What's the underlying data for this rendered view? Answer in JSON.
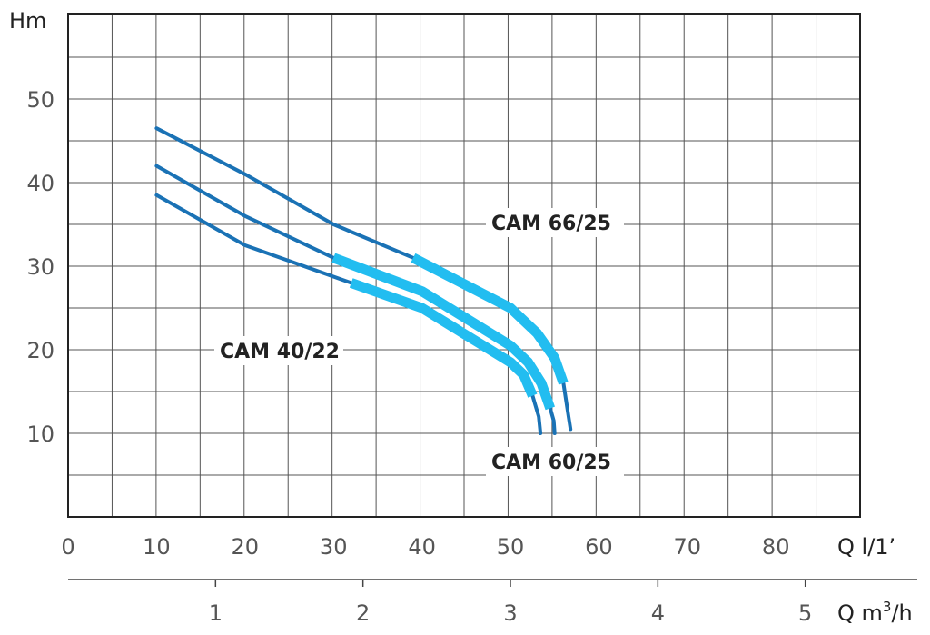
{
  "chart_data": {
    "type": "line",
    "ylabel": "Hm",
    "xlabel": "Q l/1’",
    "x2label_prefix": "Q m",
    "x2label_sup": "3",
    "x2label_suffix": "/h",
    "xlim": [
      0,
      90
    ],
    "ylim": [
      0,
      60
    ],
    "grid": true,
    "x_ticks": [
      "0",
      "10",
      "20",
      "30",
      "40",
      "50",
      "60",
      "70",
      "80"
    ],
    "y_ticks": [
      "10",
      "20",
      "30",
      "40",
      "50"
    ],
    "x2_ticks": [
      "1",
      "2",
      "3",
      "4",
      "5"
    ],
    "colors": {
      "curve": "#1a72b5",
      "highlight": "#22bdf0",
      "grid": "#555555",
      "frame": "#222222"
    },
    "series": [
      {
        "name": "CAM 66/25",
        "x": [
          10,
          20,
          30,
          39,
          50,
          53,
          55,
          56,
          56.5,
          56.8
        ],
        "y": [
          46.5,
          41,
          35,
          31,
          25,
          22,
          19,
          16,
          12.5,
          10.5
        ],
        "highlight_range": [
          39,
          56
        ]
      },
      {
        "name": "CAM 60/25",
        "x": [
          10,
          20,
          30,
          40,
          50,
          52,
          53.5,
          54.5,
          54.9,
          55
        ],
        "y": [
          42,
          36,
          31,
          27,
          20.5,
          18.5,
          16,
          13,
          11.5,
          10
        ],
        "highlight_range": [
          30,
          54.5
        ]
      },
      {
        "name": "CAM 40/22",
        "x": [
          10,
          20,
          32,
          40,
          50,
          51.5,
          52.5,
          53.2,
          53.4
        ],
        "y": [
          38.5,
          32.5,
          28,
          25,
          18.5,
          17,
          14.5,
          12,
          10
        ],
        "highlight_range": [
          32,
          52.5
        ]
      }
    ],
    "labels": [
      {
        "text": "CAM 66/25",
        "series": "CAM 66/25"
      },
      {
        "text": "CAM 60/25",
        "series": "CAM 60/25"
      },
      {
        "text": "CAM 40/22",
        "series": "CAM 40/22"
      }
    ]
  }
}
